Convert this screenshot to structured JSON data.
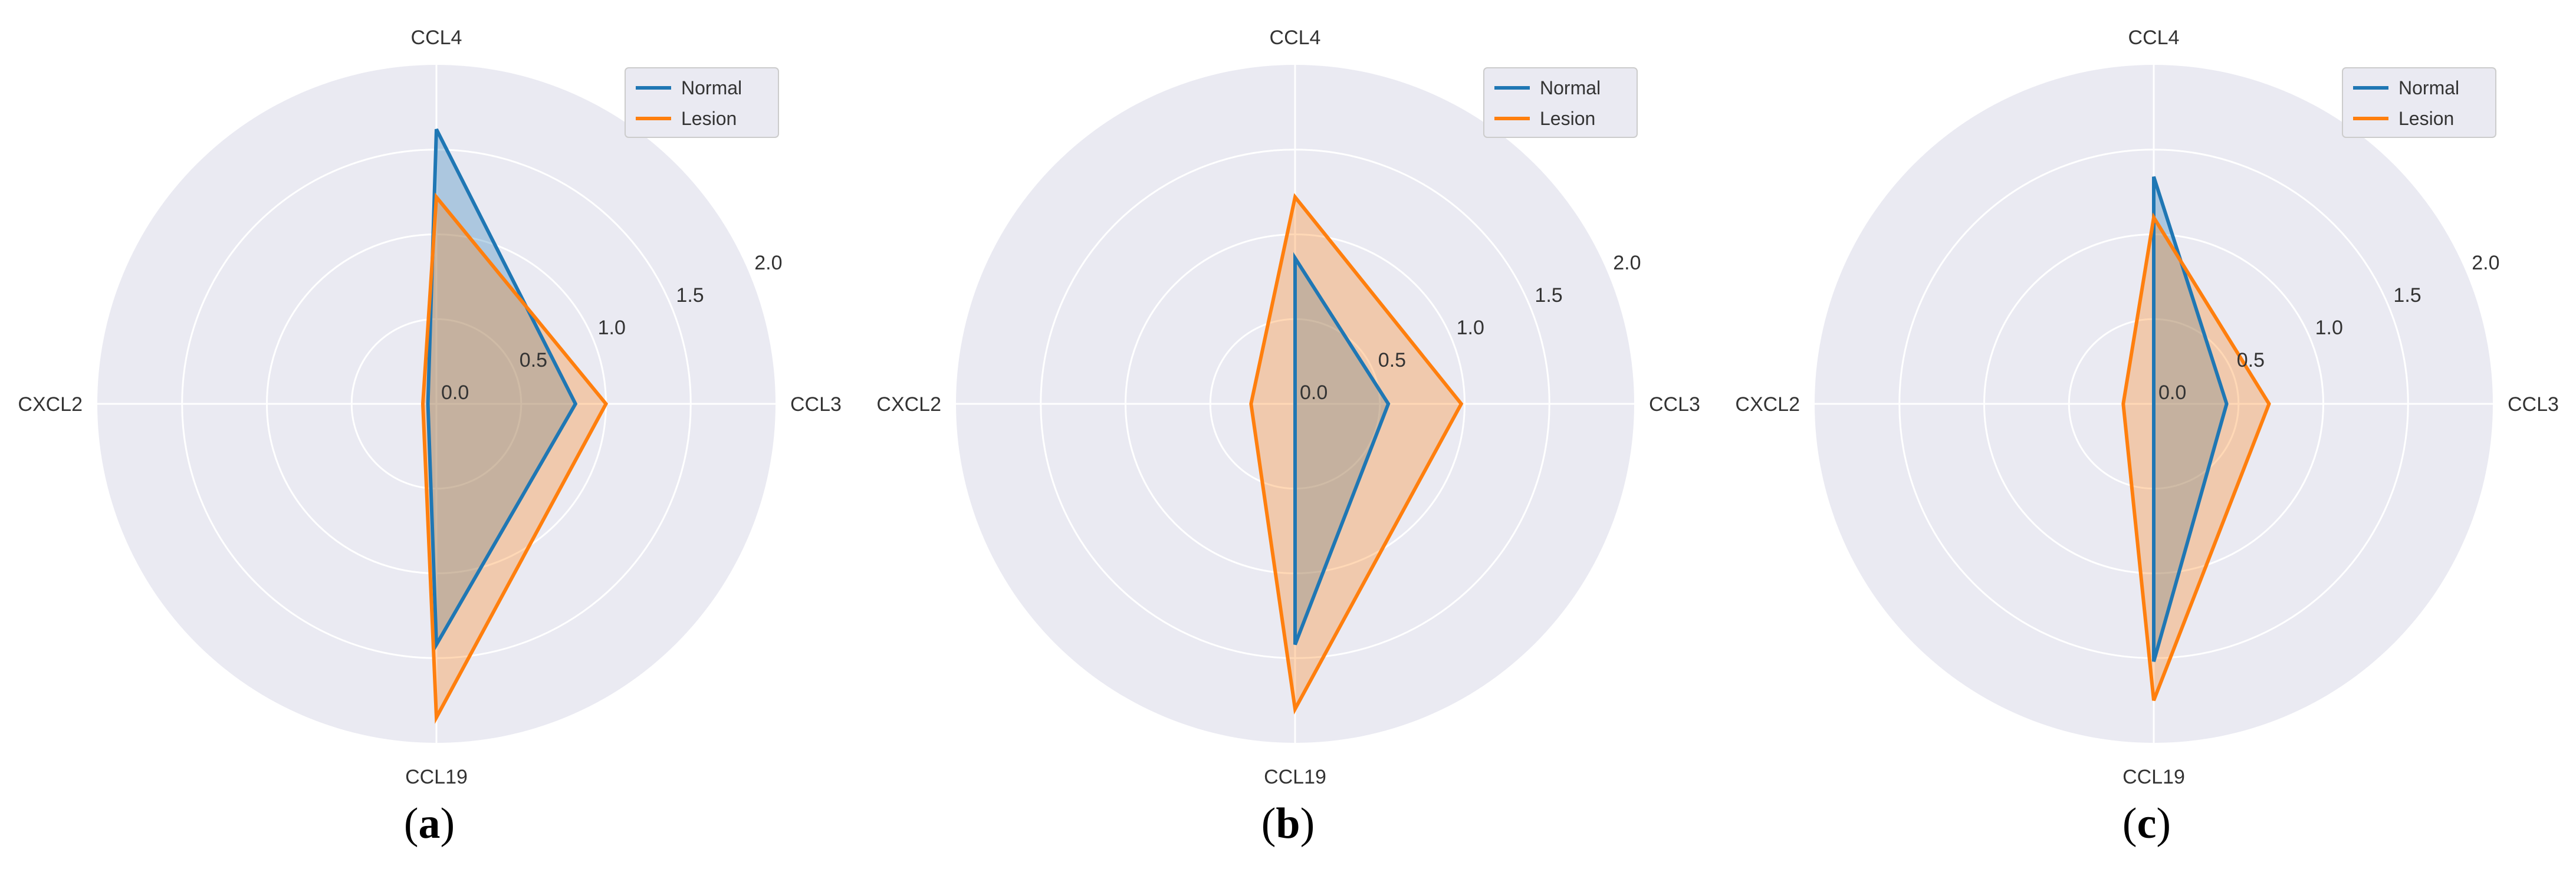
{
  "chart_data": [
    {
      "type": "radar",
      "caption_letter": "a",
      "axes": [
        "CCL3",
        "CCL4",
        "CXCL2",
        "CCL19"
      ],
      "rticks": [
        "0.0",
        "0.5",
        "1.0",
        "1.5",
        "2.0"
      ],
      "rlim": [
        0,
        2.0
      ],
      "legend_position": "top-right",
      "series": [
        {
          "name": "Normal",
          "color": "#1f77b4",
          "values": [
            0.82,
            1.62,
            0.05,
            1.42
          ]
        },
        {
          "name": "Lesion",
          "color": "#ff7f0e",
          "values": [
            1.0,
            1.22,
            0.08,
            1.85
          ]
        }
      ]
    },
    {
      "type": "radar",
      "caption_letter": "b",
      "axes": [
        "CCL3",
        "CCL4",
        "CXCL2",
        "CCL19"
      ],
      "rticks": [
        "0.0",
        "0.5",
        "1.0",
        "1.5",
        "2.0"
      ],
      "rlim": [
        0,
        2.0
      ],
      "legend_position": "top-right",
      "series": [
        {
          "name": "Normal",
          "color": "#1f77b4",
          "values": [
            0.55,
            0.86,
            0.0,
            1.42
          ]
        },
        {
          "name": "Lesion",
          "color": "#ff7f0e",
          "values": [
            0.98,
            1.22,
            0.26,
            1.8
          ]
        }
      ]
    },
    {
      "type": "radar",
      "caption_letter": "c",
      "axes": [
        "CCL3",
        "CCL4",
        "CXCL2",
        "CCL19"
      ],
      "rticks": [
        "0.0",
        "0.5",
        "1.0",
        "1.5",
        "2.0"
      ],
      "rlim": [
        0,
        2.0
      ],
      "legend_position": "top-right",
      "series": [
        {
          "name": "Normal",
          "color": "#1f77b4",
          "values": [
            0.43,
            1.34,
            0.0,
            1.52
          ]
        },
        {
          "name": "Lesion",
          "color": "#ff7f0e",
          "values": [
            0.68,
            1.1,
            0.18,
            1.75
          ]
        }
      ]
    }
  ],
  "captions": [
    {
      "open": "(",
      "letter": "a",
      "close": ")"
    },
    {
      "open": "(",
      "letter": "b",
      "close": ")"
    },
    {
      "open": "(",
      "letter": "c",
      "close": ")"
    }
  ]
}
